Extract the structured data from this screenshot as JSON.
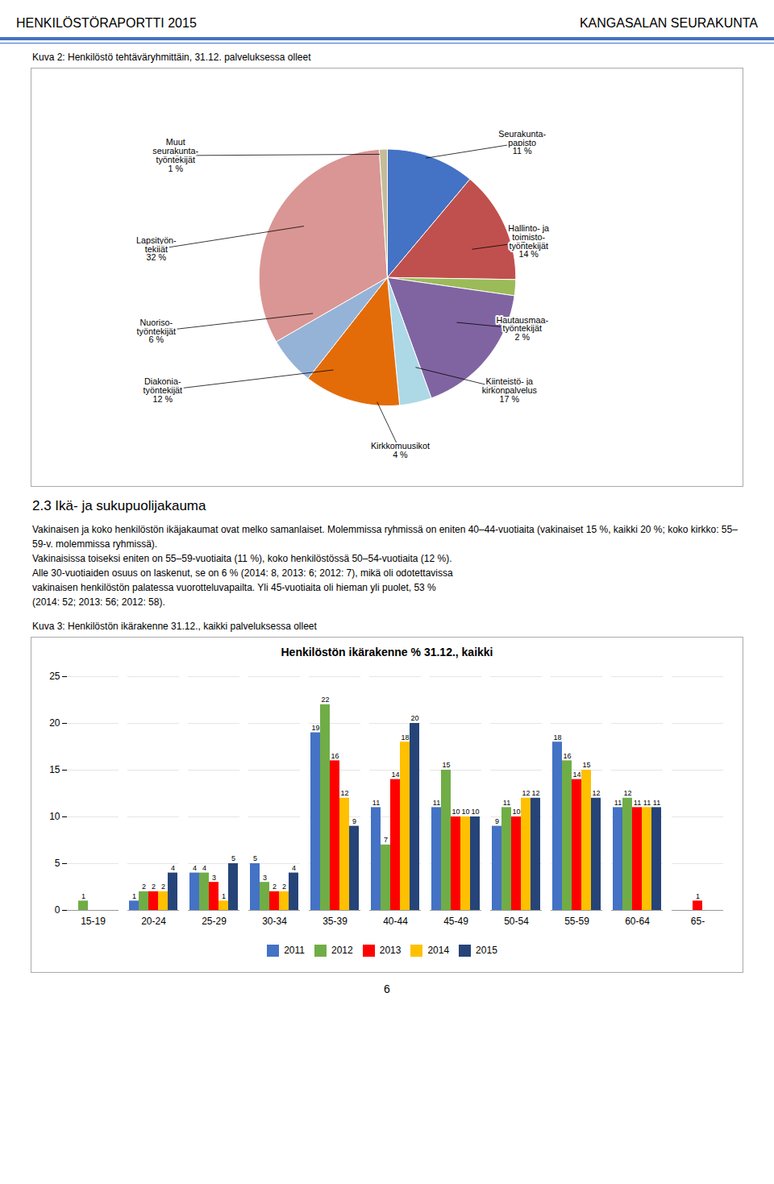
{
  "page": {
    "header_left": "HENKILÖSTÖRAPORTTI 2015",
    "header_right": "KANGASALAN SEURAKUNTA",
    "section_title": "2.3 Ikä- ja sukupuolijakauma",
    "section_text": "Vakinaisen ja koko henkilöstön ikäjakaumat ovat melko samanlaiset. Molemmissa ryhmissä on eniten 40–44-vuotiaita (vakinaiset 15 %, kaikki 20 %; koko kirkko: 55–59-v. molemmissa ryhmissä).\nVakinaisissa toiseksi eniten on 55–59-vuotiaita (11 %), koko henkilöstössä 50–54-vuotiaita (12 %).\nAlle 30-vuotiaiden osuus on laskenut, se on 6 % (2014: 8, 2013: 6; 2012: 7), mikä oli odotettavissa\nvakinaisen henkilöstön palatessa vuorotteluvapailta. Yli 45-vuotiaita oli hieman yli puolet, 53 %\n(2014: 52; 2013: 56; 2012: 58).",
    "page_number": "6"
  },
  "chart_data": [
    {
      "type": "pie",
      "caption": "Kuva 2: Henkilöstö tehtäväryhmittäin, 31.12. palveluksessa olleet",
      "categories": [
        "Seurakunta-\npapisto",
        "Hallinto- ja\ntoimisto-\ntyöntekijät",
        "Hautausmaa-\ntyöntekijät",
        "Kiinteistö- ja\nkirkonpalvelus",
        "Kirkkomuusikot",
        "Diakonia-\ntyöntekijät",
        "Nuoriso-\ntyöntekijät",
        "Lapsityön-\ntekijät",
        "Muut\nseurakunta-\ntyöntekijät"
      ],
      "values": [
        11,
        14,
        2,
        17,
        4,
        12,
        6,
        32,
        1
      ],
      "value_labels": [
        "11 %",
        "14 %",
        "2 %",
        "17 %",
        "4 %",
        "12 %",
        "6 %",
        "32 %",
        "1 %"
      ],
      "colors": [
        "#4472C4",
        "#C0504D",
        "#9BBB59",
        "#8064A2",
        "#ADD8E6",
        "#E36C09",
        "#95B3D7",
        "#D99694",
        "#C4BD97"
      ],
      "data_labels": true
    },
    {
      "type": "bar",
      "caption": "Kuva 3: Henkilöstön ikärakenne 31.12., kaikki palveluksessa olleet",
      "title": "Henkilöstön ikärakenne % 31.12., kaikki",
      "categories": [
        "15-19",
        "20-24",
        "25-29",
        "30-34",
        "35-39",
        "40-44",
        "45-49",
        "50-54",
        "55-59",
        "60-64",
        "65-"
      ],
      "series": [
        {
          "name": "2011",
          "color": "#4472C4",
          "values": [
            0,
            1,
            4,
            5,
            19,
            11,
            11,
            9,
            18,
            11,
            0
          ]
        },
        {
          "name": "2012",
          "color": "#70AD47",
          "values": [
            1,
            2,
            4,
            3,
            22,
            7,
            15,
            11,
            16,
            12,
            0
          ]
        },
        {
          "name": "2013",
          "color": "#FF0000",
          "values": [
            0,
            2,
            3,
            2,
            16,
            14,
            10,
            10,
            14,
            11,
            1
          ]
        },
        {
          "name": "2014",
          "color": "#FFC000",
          "values": [
            0,
            2,
            1,
            2,
            12,
            18,
            10,
            12,
            15,
            11,
            0
          ]
        },
        {
          "name": "2015",
          "color": "#264478",
          "values": [
            0,
            4,
            5,
            4,
            9,
            20,
            10,
            12,
            12,
            11,
            0
          ]
        }
      ],
      "ylim": [
        0,
        25
      ],
      "yticks": [
        0,
        5,
        10,
        15,
        20,
        25
      ],
      "grid": true,
      "data_labels": true,
      "legend": "bottom"
    }
  ]
}
